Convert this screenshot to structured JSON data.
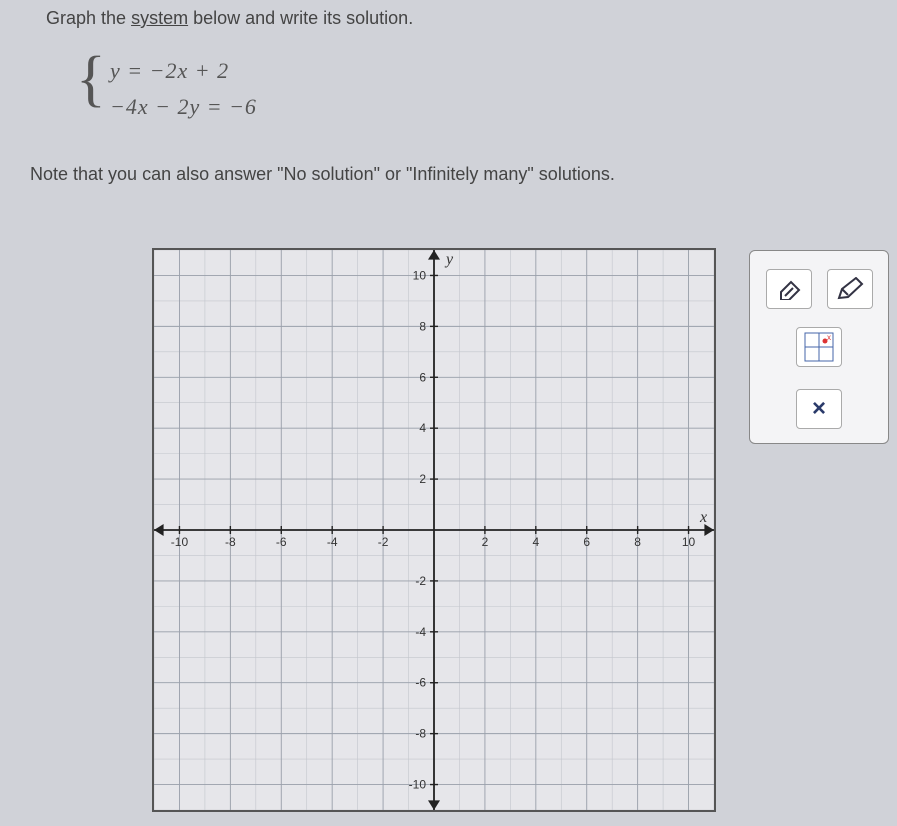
{
  "instruction": {
    "pre": "Graph the ",
    "underlined": "system",
    "post": " below and write its solution."
  },
  "equations": {
    "eq1": "y = −2x + 2",
    "eq2": "−4x − 2y = −6"
  },
  "note": "Note that you can also answer \"No solution\" or \"Infinitely many\" solutions.",
  "graph": {
    "xlim": [
      -11,
      11
    ],
    "ylim": [
      -11,
      11
    ],
    "major_step": 2,
    "minor_step": 1,
    "x_ticks": [
      -10,
      -8,
      -6,
      -4,
      -2,
      2,
      4,
      6,
      8,
      10
    ],
    "y_ticks": [
      -10,
      -8,
      -6,
      -4,
      -2,
      2,
      4,
      6,
      8,
      10
    ],
    "x_axis_label": "x",
    "y_axis_label": "y",
    "background_color": "#e6e6ea",
    "minor_grid_color": "#c3c6cc",
    "major_grid_color": "#9aa0ab",
    "axis_color": "#222222",
    "tick_label_fontsize": 12,
    "axis_label_fontsize": 16,
    "arrow_size": 6
  },
  "tools": {
    "eraser_label": "eraser",
    "pencil_label": "pencil",
    "point_tool_label": "point-plot",
    "close_label": "×"
  }
}
